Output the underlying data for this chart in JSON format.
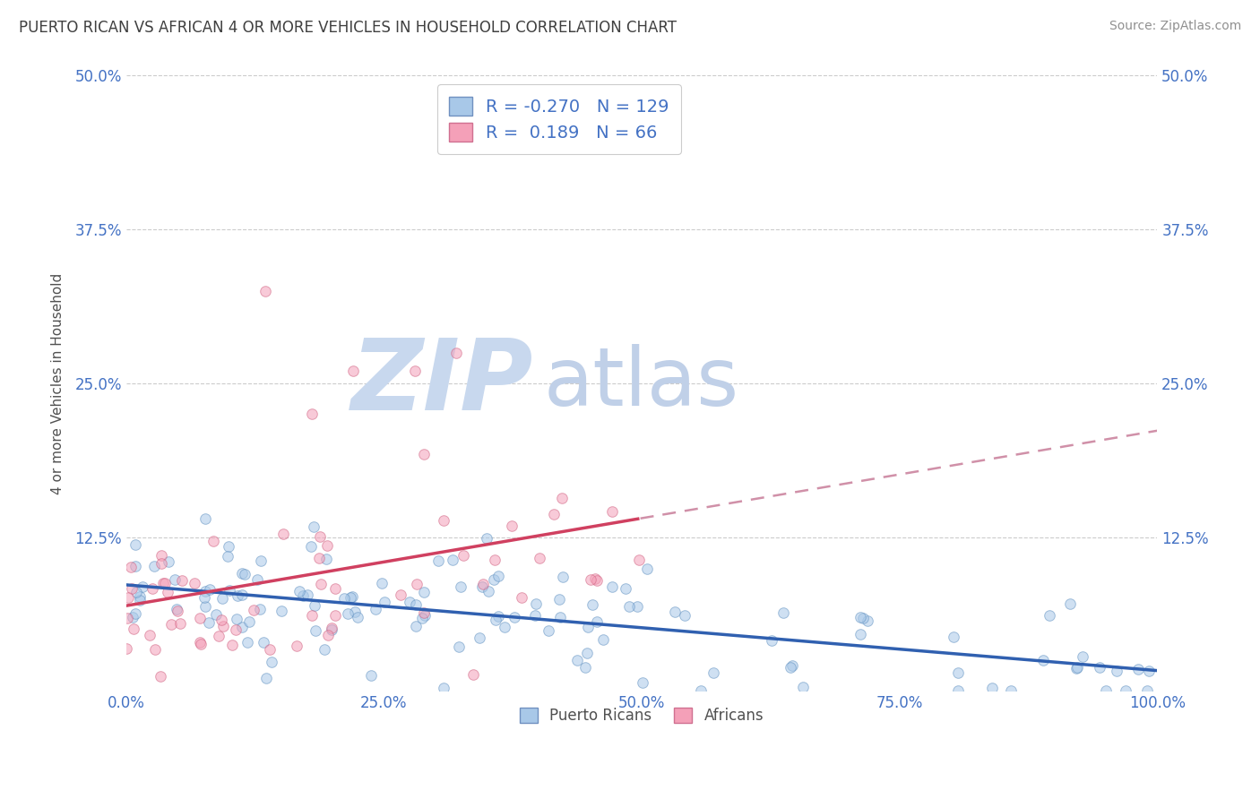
{
  "title": "PUERTO RICAN VS AFRICAN 4 OR MORE VEHICLES IN HOUSEHOLD CORRELATION CHART",
  "source_text": "Source: ZipAtlas.com",
  "ylabel": "4 or more Vehicles in Household",
  "legend_labels_bottom": [
    "Puerto Ricans",
    "Africans"
  ],
  "R_puerto": -0.27,
  "N_puerto": 129,
  "R_african": 0.189,
  "N_african": 66,
  "blue_scatter_color": "#a8c8e8",
  "pink_scatter_color": "#f4a0b8",
  "blue_edge_color": "#6090c0",
  "pink_edge_color": "#d06080",
  "blue_line_color": "#3060b0",
  "pink_line_color": "#d04060",
  "dashed_line_color": "#d090a8",
  "xlim": [
    0.0,
    100.0
  ],
  "ylim": [
    0.0,
    50.0
  ],
  "yticks": [
    0.0,
    12.5,
    25.0,
    37.5,
    50.0
  ],
  "xticks": [
    0.0,
    25.0,
    50.0,
    75.0,
    100.0
  ],
  "xtick_labels": [
    "0.0%",
    "25.0%",
    "50.0%",
    "75.0%",
    "100.0%"
  ],
  "ytick_labels_left": [
    "",
    "12.5%",
    "25.0%",
    "37.5%",
    "50.0%"
  ],
  "ytick_labels_right": [
    "",
    "12.5%",
    "25.0%",
    "37.5%",
    "50.0%"
  ],
  "background_color": "#ffffff",
  "grid_color": "#cccccc",
  "watermark_ZIP_color": "#c8d8ee",
  "watermark_atlas_color": "#c0d0e8",
  "title_color": "#404040",
  "axis_label_color": "#505050",
  "tick_label_color": "#4472c4",
  "source_color": "#909090",
  "legend_R_color": "#4472c4",
  "legend_patch_blue": "#a8c8e8",
  "legend_patch_pink": "#f4a0b8",
  "legend_patch_blue_edge": "#7090c0",
  "legend_patch_pink_edge": "#d07090"
}
